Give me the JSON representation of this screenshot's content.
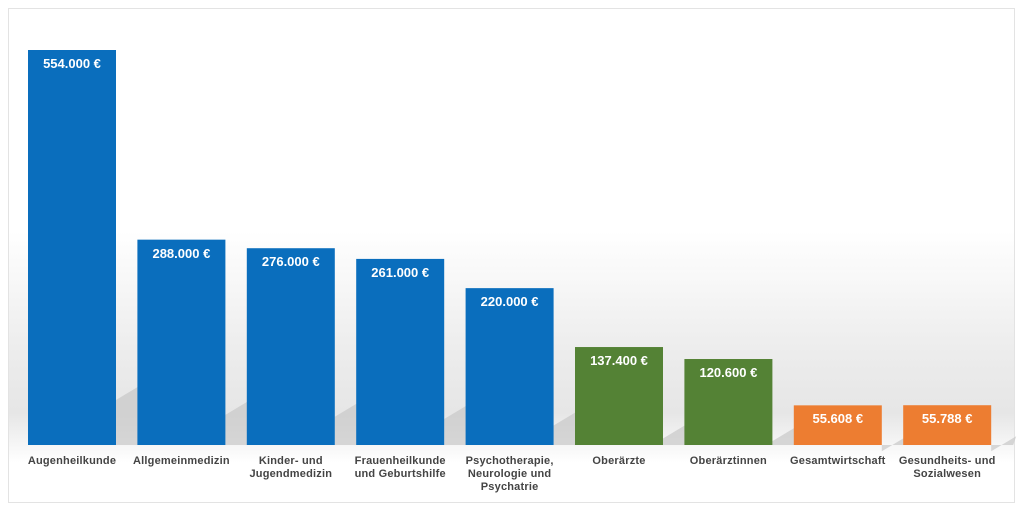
{
  "chart_data": {
    "type": "bar",
    "title": "",
    "xlabel": "",
    "ylabel": "",
    "ylim": [
      0,
      554000
    ],
    "grid": false,
    "categories": [
      "Augenheilkunde",
      "Allgemeinmedizin",
      "Kinder- und Jugendmedizin",
      "Frauenheilkunde und Geburtshilfe",
      "Psychotherapie, Neurologie und Psychatrie",
      "Oberärzte",
      "Oberärztinnen",
      "Gesamtwirtschaft",
      "Gesundheits- und Sozialwesen"
    ],
    "label_lines": [
      [
        "Augenheilkunde"
      ],
      [
        "Allgemeinmedizin"
      ],
      [
        "Kinder- und",
        "Jugendmedizin"
      ],
      [
        "Frauenheilkunde",
        "und Geburtshilfe"
      ],
      [
        "Psychotherapie,",
        "Neurologie und",
        "Psychatrie"
      ],
      [
        "Oberärzte"
      ],
      [
        "Oberärztinnen"
      ],
      [
        "Gesamtwirtschaft"
      ],
      [
        "Gesundheits- und",
        "Sozialwesen"
      ]
    ],
    "values": [
      554000,
      288000,
      276000,
      261000,
      220000,
      137400,
      120600,
      55608,
      55788
    ],
    "value_labels": [
      "554.000 €",
      "288.000 €",
      "276.000 €",
      "261.000 €",
      "220.000 €",
      "137.400 €",
      "120.600 €",
      "55.608 €",
      "55.788 €"
    ],
    "colors": [
      "#0a6ebd",
      "#0a6ebd",
      "#0a6ebd",
      "#0a6ebd",
      "#0a6ebd",
      "#548235",
      "#548235",
      "#ed7d31",
      "#ed7d31"
    ]
  }
}
